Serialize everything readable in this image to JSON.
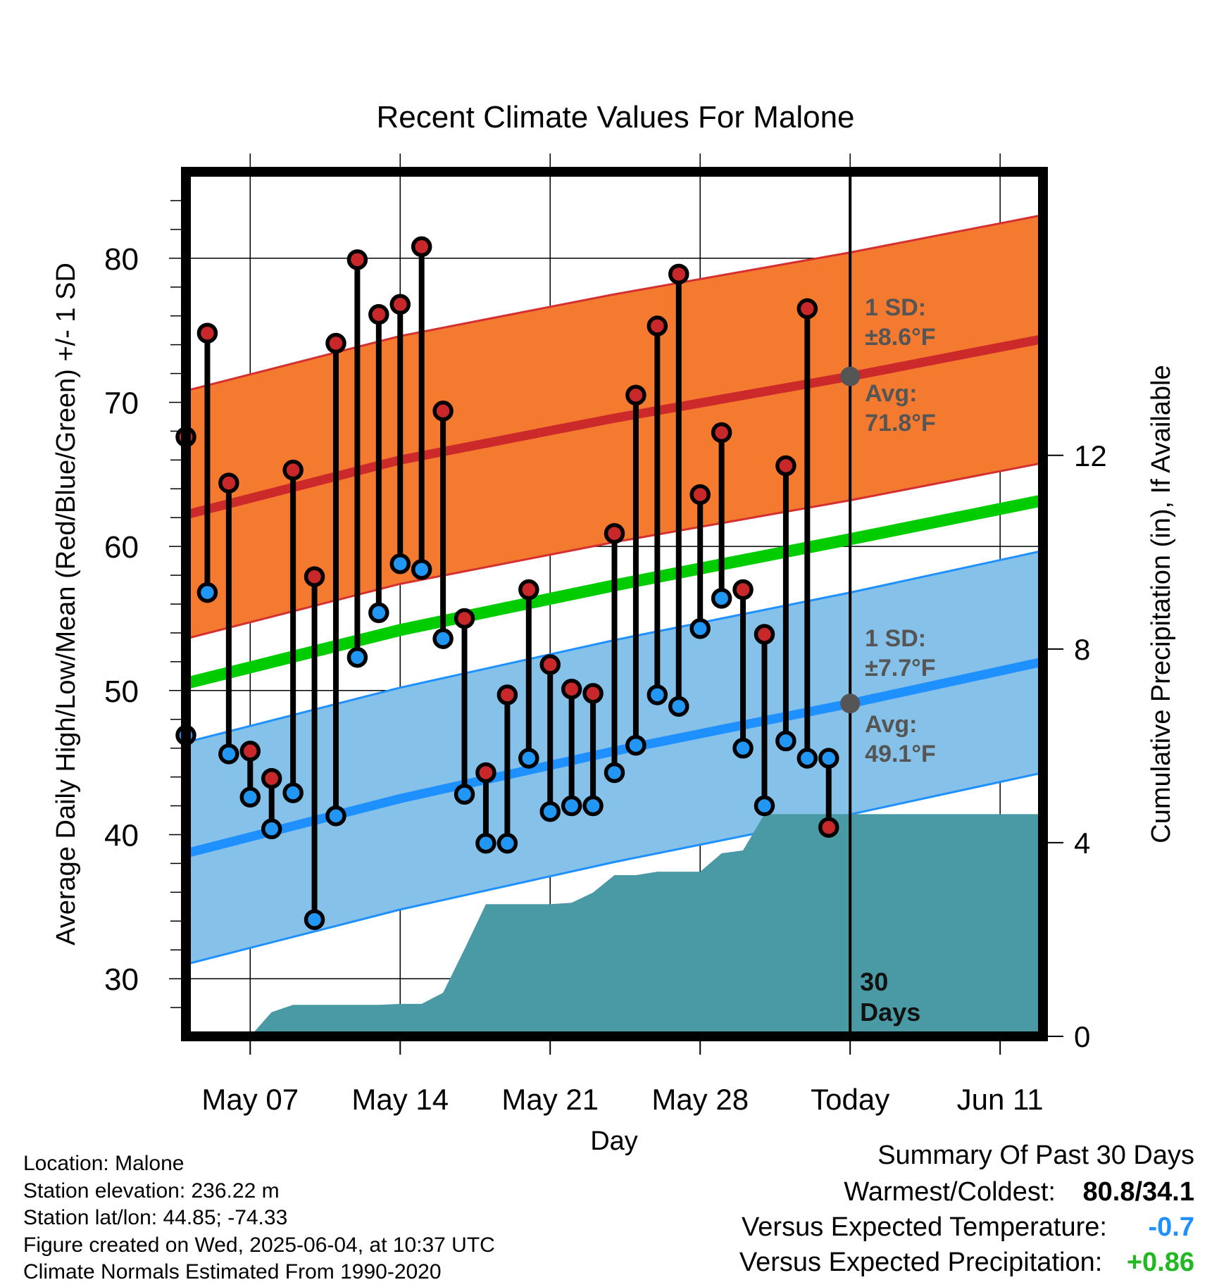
{
  "chart_data": {
    "type": "line",
    "title": "Recent Climate Values For Malone",
    "xlabel": "Day",
    "ylabel": "Average Daily High/Low/Mean (Red/Blue/Green) +/- 1 SD",
    "y2label": "Cumulative Precipitation (in), If Available",
    "ylim": [
      26,
      86
    ],
    "y2lim": [
      0,
      17.857
    ],
    "yticks": [
      "30",
      "40",
      "50",
      "60",
      "70",
      "80"
    ],
    "y2ticks": [
      "0",
      "4",
      "8",
      "12"
    ],
    "xlim": [
      "2025-05-04",
      "2025-06-13"
    ],
    "xticks": [
      {
        "date": "2025-05-07",
        "label": "May 07"
      },
      {
        "date": "2025-05-14",
        "label": "May 14"
      },
      {
        "date": "2025-05-21",
        "label": "May 21"
      },
      {
        "date": "2025-05-28",
        "label": "May 28"
      },
      {
        "date": "2025-06-04",
        "label": "Today"
      },
      {
        "date": "2025-06-11",
        "label": "Jun 11"
      }
    ],
    "grid": true,
    "today": {
      "date": "2025-06-04",
      "label": "30\nDays"
    },
    "normals": {
      "dates": [
        "2025-05-04",
        "2025-05-14",
        "2025-05-24",
        "2025-06-04",
        "2025-06-13"
      ],
      "avg_high": [
        62.2,
        66.0,
        68.9,
        71.8,
        74.4
      ],
      "avg_high_sd": 8.6,
      "avg_low": [
        38.7,
        42.5,
        45.8,
        49.1,
        52.0
      ],
      "avg_low_sd": 7.7,
      "avg_mean": [
        50.5,
        54.2,
        57.3,
        60.5,
        63.2
      ]
    },
    "series": [
      {
        "name": "High",
        "color": "#c8282a",
        "x": [
          "2025-05-04",
          "2025-05-05",
          "2025-05-06",
          "2025-05-07",
          "2025-05-08",
          "2025-05-09",
          "2025-05-10",
          "2025-05-11",
          "2025-05-12",
          "2025-05-13",
          "2025-05-14",
          "2025-05-15",
          "2025-05-16",
          "2025-05-17",
          "2025-05-18",
          "2025-05-19",
          "2025-05-20",
          "2025-05-21",
          "2025-05-22",
          "2025-05-23",
          "2025-05-24",
          "2025-05-25",
          "2025-05-26",
          "2025-05-27",
          "2025-05-28",
          "2025-05-29",
          "2025-05-30",
          "2025-05-31",
          "2025-06-01",
          "2025-06-02",
          "2025-06-03"
        ],
        "values": [
          67.6,
          74.8,
          64.4,
          45.8,
          43.9,
          65.3,
          57.9,
          74.1,
          79.9,
          76.1,
          76.8,
          80.8,
          69.4,
          55.0,
          44.3,
          49.7,
          57.0,
          51.8,
          50.1,
          49.8,
          60.9,
          70.5,
          75.3,
          78.9,
          63.6,
          67.9,
          57.0,
          53.9,
          65.6,
          76.5,
          40.5
        ]
      },
      {
        "name": "Low",
        "color": "#2196f3",
        "x": [
          "2025-05-04",
          "2025-05-05",
          "2025-05-06",
          "2025-05-07",
          "2025-05-08",
          "2025-05-09",
          "2025-05-10",
          "2025-05-11",
          "2025-05-12",
          "2025-05-13",
          "2025-05-14",
          "2025-05-15",
          "2025-05-16",
          "2025-05-17",
          "2025-05-18",
          "2025-05-19",
          "2025-05-20",
          "2025-05-21",
          "2025-05-22",
          "2025-05-23",
          "2025-05-24",
          "2025-05-25",
          "2025-05-26",
          "2025-05-27",
          "2025-05-28",
          "2025-05-29",
          "2025-05-30",
          "2025-05-31",
          "2025-06-01",
          "2025-06-02",
          "2025-06-03"
        ],
        "values": [
          46.9,
          56.8,
          45.6,
          42.6,
          40.4,
          42.9,
          34.1,
          41.3,
          52.3,
          55.4,
          58.8,
          58.4,
          53.6,
          42.8,
          39.4,
          39.4,
          45.3,
          41.6,
          42.0,
          42.0,
          44.3,
          46.2,
          49.7,
          48.9,
          54.3,
          56.4,
          46.0,
          42.0,
          46.5,
          45.3,
          45.3
        ]
      }
    ],
    "precipitation": {
      "name": "Cumulative Precipitation",
      "color": "#4a9aa5",
      "x": [
        "2025-05-07",
        "2025-05-08",
        "2025-05-09",
        "2025-05-10",
        "2025-05-11",
        "2025-05-12",
        "2025-05-13",
        "2025-05-14",
        "2025-05-15",
        "2025-05-16",
        "2025-05-17",
        "2025-05-18",
        "2025-05-19",
        "2025-05-20",
        "2025-05-21",
        "2025-05-22",
        "2025-05-23",
        "2025-05-24",
        "2025-05-25",
        "2025-05-26",
        "2025-05-27",
        "2025-05-28",
        "2025-05-29",
        "2025-05-30",
        "2025-05-31",
        "2025-06-01",
        "2025-06-02",
        "2025-06-03",
        "2025-06-04"
      ],
      "values": [
        0.0,
        0.5,
        0.65,
        0.65,
        0.65,
        0.65,
        0.65,
        0.67,
        0.67,
        0.9,
        1.8,
        2.73,
        2.73,
        2.73,
        2.73,
        2.76,
        2.97,
        3.33,
        3.33,
        3.4,
        3.4,
        3.4,
        3.78,
        3.84,
        4.59,
        4.59,
        4.59,
        4.59,
        4.59
      ]
    },
    "annotations": {
      "high_sd": "1 SD:\n±8.6°F",
      "high_avg": "Avg:\n71.8°F",
      "low_sd": "1 SD:\n±7.7°F",
      "low_avg": "Avg:\n49.1°F"
    },
    "colors": {
      "high_band": "#f47a30",
      "high_line": "#cc2a2a",
      "high_band_edge": "#d43030",
      "mean_line": "#00cc00",
      "low_band": "#85c1e8",
      "low_line": "#1e90ff",
      "precip": "#4a9aa5",
      "high_dot": "#c8282a",
      "low_dot": "#2196f3",
      "marker": "#555555"
    }
  },
  "footer": {
    "location": "Location: Malone",
    "elevation": "Station elevation: 236.22 m",
    "latlon": "Station lat/lon: 44.85; -74.33",
    "created": "Figure created on Wed, 2025-06-04, at 10:37 UTC",
    "normals": "Climate Normals Estimated From 1990-2020"
  },
  "summary": {
    "title": "Summary Of Past 30 Days",
    "warmest_label": "Warmest/Coldest:",
    "warmest_value": "80.8/34.1",
    "temp_label": "Versus Expected Temperature:",
    "temp_value": "-0.7",
    "temp_color": "#1e90ff",
    "precip_label": "Versus Expected Precipitation:",
    "precip_value": "+0.86",
    "precip_color": "#22b822"
  }
}
